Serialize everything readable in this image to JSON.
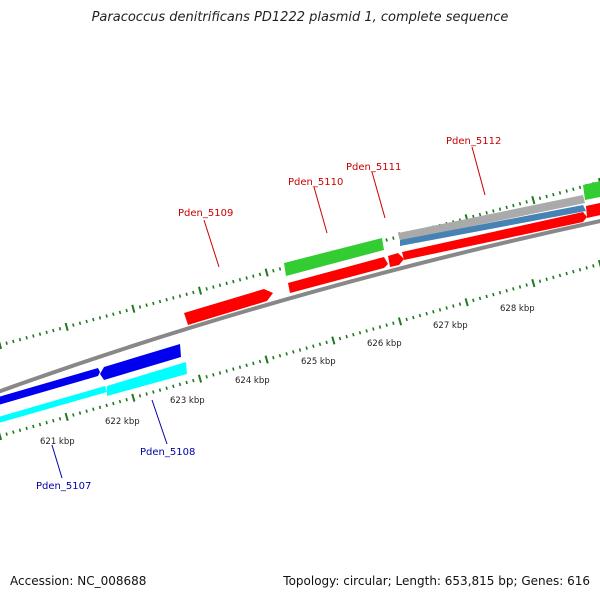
{
  "title": "Paracoccus denitrificans PD1222 plasmid 1, complete sequence",
  "footer": {
    "accession": "Accession: NC_008688",
    "stats": "Topology: circular; Length: 653,815 bp; Genes: 616"
  },
  "scale_labels": [
    "621 kbp",
    "622 kbp",
    "623 kbp",
    "624 kbp",
    "625 kbp",
    "626 kbp",
    "627 kbp",
    "628 kbp"
  ],
  "genes": [
    {
      "name": "Pden_5107",
      "strand": "minus"
    },
    {
      "name": "Pden_5108",
      "strand": "minus"
    },
    {
      "name": "Pden_5109",
      "strand": "plus"
    },
    {
      "name": "Pden_5110",
      "strand": "plus"
    },
    {
      "name": "Pden_5111",
      "strand": "plus"
    },
    {
      "name": "Pden_5112",
      "strand": "plus"
    }
  ],
  "colors": {
    "red": "#ff0000",
    "blue": "#0000ee",
    "cyan": "#00ffff",
    "green": "#33cc33",
    "gray": "#aaaaaa",
    "steel": "#4682b4",
    "backbone": "#888888",
    "tick": "#1f7a1f",
    "label_red": "#cc0000",
    "label_blue": "#0000aa"
  }
}
